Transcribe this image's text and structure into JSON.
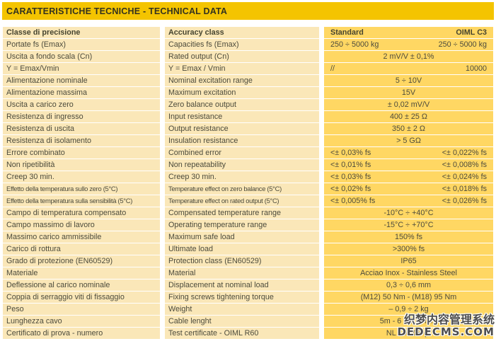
{
  "banner": {
    "title": "CARATTERISTICHE TECNICHE - TECHNICAL DATA"
  },
  "table": {
    "header": {
      "italian": "Classe di precisione",
      "english": "Accuracy class",
      "standard": "Standard",
      "oiml": "OIML C3"
    },
    "rows": [
      {
        "it": "Portate fs (Emax)",
        "en": "Capacities fs (Emax)",
        "layout": "split",
        "standard": "250 ÷ 5000 kg",
        "oiml": "250 ÷ 5000 kg"
      },
      {
        "it": "Uscita a fondo scala (Cn)",
        "en": "Rated output (Cn)",
        "layout": "center",
        "value": "2 mV/V ± 0,1%"
      },
      {
        "it": "Y = Emax/Vmin",
        "en": "Y = Emax / Vmin",
        "layout": "split",
        "standard": "//",
        "oiml": "10000"
      },
      {
        "it": "Alimentazione nominale",
        "en": "Nominal excitation range",
        "layout": "center",
        "value": "5 ÷ 10V"
      },
      {
        "it": "Alimentazione massima",
        "en": "Maximum excitation",
        "layout": "center",
        "value": "15V"
      },
      {
        "it": "Uscita a carico zero",
        "en": "Zero balance output",
        "layout": "center",
        "value": "± 0,02 mV/V"
      },
      {
        "it": "Resistenza di ingresso",
        "en": "Input resistance",
        "layout": "center",
        "value": "400 ± 25 Ω"
      },
      {
        "it": "Resistenza di uscita",
        "en": "Output resistance",
        "layout": "center",
        "value": "350 ± 2 Ω"
      },
      {
        "it": "Resistenza di isolamento",
        "en": "Insulation resistance",
        "layout": "center",
        "value": "> 5 GΩ"
      },
      {
        "it": "Errore combinato",
        "en": "Combined error",
        "layout": "split",
        "standard": "<± 0,03% fs",
        "oiml": "<± 0,022% fs"
      },
      {
        "it": "Non ripetibilità",
        "en": "Non repeatability",
        "layout": "split",
        "standard": "<± 0,01% fs",
        "oiml": "<± 0,008% fs"
      },
      {
        "it": "Creep 30 min.",
        "en": "Creep 30 min.",
        "layout": "split",
        "standard": "<± 0,03% fs",
        "oiml": "<± 0,024% fs"
      },
      {
        "it": "Effetto della temperatura sullo zero (5°C)",
        "en": "Temperature effect on zero balance (5°C)",
        "layout": "split",
        "standard": "<± 0,02% fs",
        "oiml": "<± 0,018% fs"
      },
      {
        "it": "Effetto della temperatura sulla sensibilità (5°C)",
        "en": "Temperature effect on rated output (5°C)",
        "layout": "split",
        "standard": "<± 0,005% fs",
        "oiml": "<± 0,026% fs"
      },
      {
        "it": "Campo di temperatura compensato",
        "en": "Compensated temperature range",
        "layout": "center",
        "value": "-10°C ÷ +40°C"
      },
      {
        "it": "Campo massimo di lavoro",
        "en": "Operating temperature range",
        "layout": "center",
        "value": "-15°C ÷ +70°C"
      },
      {
        "it": "Massimo carico ammissibile",
        "en": "Maximum safe load",
        "layout": "center",
        "value": "150% fs"
      },
      {
        "it": "Carico di rottura",
        "en": "Ultimate load",
        "layout": "center",
        "value": ">300% fs"
      },
      {
        "it": "Grado di protezione (EN60529)",
        "en": "Protection class (EN60529)",
        "layout": "center",
        "value": "IP65"
      },
      {
        "it": "Materiale",
        "en": "Material",
        "layout": "center",
        "value": "Acciao Inox - Stainless Steel"
      },
      {
        "it": "Deflessione al carico nominale",
        "en": "Displacement at nominal load",
        "layout": "center",
        "value": "0,3 ÷ 0,6 mm"
      },
      {
        "it": "Coppia di serraggio viti di fissaggio",
        "en": "Fixing screws tightening torque",
        "layout": "center",
        "value": "(M12) 50 Nm - (M18) 95 Nm"
      },
      {
        "it": "Peso",
        "en": "Weight",
        "layout": "center",
        "value": "– 0,9 ÷ 2 kg"
      },
      {
        "it": "Lunghezza cavo",
        "en": "Cable lenght",
        "layout": "center",
        "value": "5m - 6 x 0,1 mm²"
      },
      {
        "it": "Certificato di prova - numero",
        "en": "Test certificate - OIML R60",
        "layout": "center",
        "value": "NL - 98.08 (T"
      }
    ]
  },
  "watermark": {
    "line1": "织梦内容管理系统",
    "line2": "DEDECMS.COM"
  },
  "colors": {
    "banner_background": "#F4C400",
    "label_column_background": "#FAE7B8",
    "value_column_background": "#FFD763",
    "text": "#4C4B3C"
  }
}
